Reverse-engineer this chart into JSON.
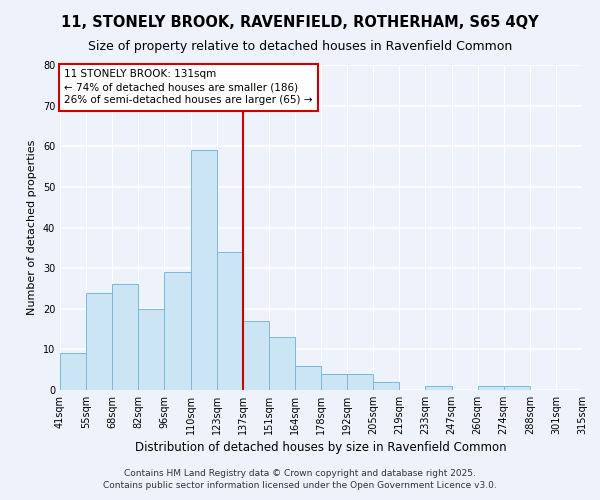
{
  "title": "11, STONELY BROOK, RAVENFIELD, ROTHERHAM, S65 4QY",
  "subtitle": "Size of property relative to detached houses in Ravenfield Common",
  "xlabel": "Distribution of detached houses by size in Ravenfield Common",
  "ylabel": "Number of detached properties",
  "bar_values_20": [
    9,
    24,
    26,
    20,
    29,
    59,
    34,
    17,
    13,
    6,
    4,
    4,
    2,
    0,
    1,
    0,
    1,
    1,
    0,
    0
  ],
  "bar_labels": [
    "41sqm",
    "55sqm",
    "68sqm",
    "82sqm",
    "96sqm",
    "110sqm",
    "123sqm",
    "137sqm",
    "151sqm",
    "164sqm",
    "178sqm",
    "192sqm",
    "205sqm",
    "219sqm",
    "233sqm",
    "247sqm",
    "260sqm",
    "274sqm",
    "288sqm",
    "301sqm",
    "315sqm"
  ],
  "bar_color": "#cce5f5",
  "bar_edge_color": "#7ab8d9",
  "background_color": "#eef2fb",
  "grid_color": "#ffffff",
  "vline_color": "#cc0000",
  "annotation_title": "11 STONELY BROOK: 131sqm",
  "annotation_line1": "← 74% of detached houses are smaller (186)",
  "annotation_line2": "26% of semi-detached houses are larger (65) →",
  "annotation_box_color": "#ffffff",
  "annotation_box_edge": "#cc0000",
  "ylim": [
    0,
    80
  ],
  "yticks": [
    0,
    10,
    20,
    30,
    40,
    50,
    60,
    70,
    80
  ],
  "footnote1": "Contains HM Land Registry data © Crown copyright and database right 2025.",
  "footnote2": "Contains public sector information licensed under the Open Government Licence v3.0.",
  "title_fontsize": 10.5,
  "subtitle_fontsize": 9,
  "xlabel_fontsize": 8.5,
  "ylabel_fontsize": 8,
  "tick_fontsize": 7,
  "annotation_fontsize": 7.5,
  "footnote_fontsize": 6.5
}
